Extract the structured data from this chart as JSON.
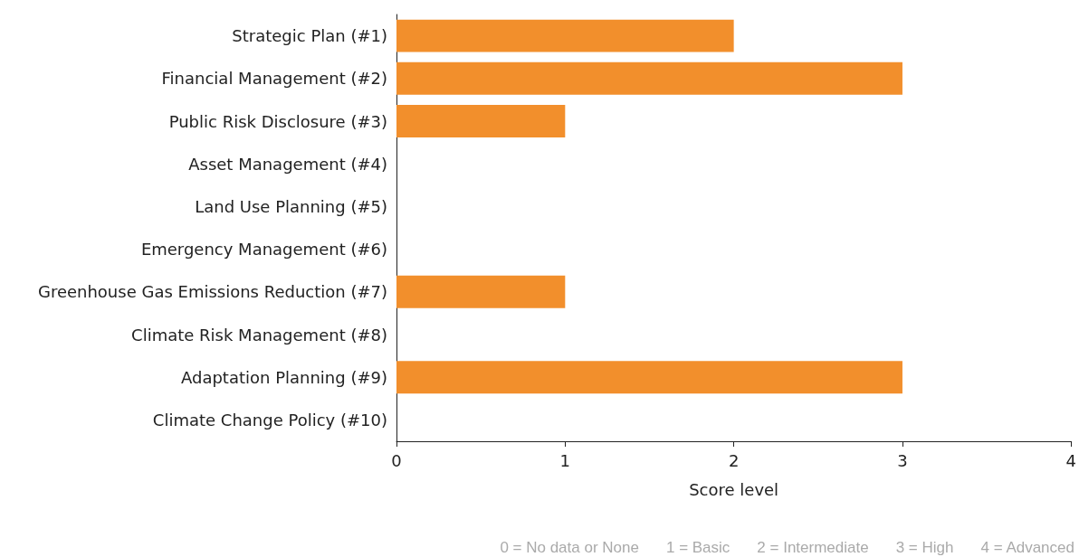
{
  "chart_data": {
    "type": "bar",
    "orientation": "horizontal",
    "categories": [
      "Strategic Plan (#1)",
      "Financial Management (#2)",
      "Public Risk Disclosure (#3)",
      "Asset Management (#4)",
      "Land Use Planning (#5)",
      "Emergency Management (#6)",
      "Greenhouse Gas Emissions Reduction (#7)",
      "Climate Risk Management (#8)",
      "Adaptation Planning (#9)",
      "Climate Change Policy (#10)"
    ],
    "values": [
      2,
      3,
      1,
      0,
      0,
      0,
      1,
      0,
      3,
      0
    ],
    "color": "#f28f2c",
    "xlim": [
      0,
      4
    ],
    "xticks": [
      0,
      1,
      2,
      3,
      4
    ],
    "xlabel": "Score level",
    "annotations": [
      "0 = No data or None",
      "1 = Basic",
      "2 = Intermediate",
      "3 = High",
      "4 = Advanced"
    ]
  }
}
